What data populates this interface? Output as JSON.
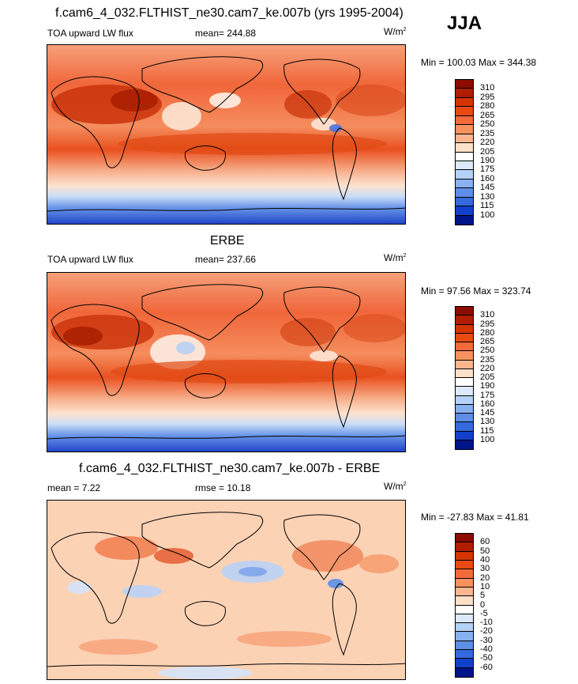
{
  "season": "JJA",
  "panels": [
    {
      "title": "f.cam6_4_032.FLTHIST_ne30.cam7_ke.007b (yrs 1995-2004)",
      "left_label": "TOA upward LW flux",
      "mid_label": "mean= 244.88",
      "units": "W/m",
      "units_sup": "2",
      "minmax": "Min = 100.03 Max = 344.38",
      "levels": [
        "310",
        "295",
        "280",
        "265",
        "250",
        "235",
        "220",
        "205",
        "190",
        "175",
        "160",
        "145",
        "130",
        "115",
        "100"
      ],
      "colors": [
        "#8c0c00",
        "#b01d00",
        "#d43500",
        "#e84a12",
        "#f26a3a",
        "#f7925f",
        "#fbb690",
        "#fde0c8",
        "#ffffff",
        "#dbe9fb",
        "#b4d1f7",
        "#88b1f0",
        "#5e8ee6",
        "#3569dd",
        "#1240cc",
        "#00148a"
      ]
    },
    {
      "title": "ERBE",
      "left_label": "TOA upward LW flux",
      "mid_label": "mean= 237.66",
      "units": "W/m",
      "units_sup": "2",
      "minmax": "Min =  97.56 Max = 323.74",
      "levels": [
        "310",
        "295",
        "280",
        "265",
        "250",
        "235",
        "220",
        "205",
        "190",
        "175",
        "160",
        "145",
        "130",
        "115",
        "100"
      ],
      "colors": [
        "#8c0c00",
        "#b01d00",
        "#d43500",
        "#e84a12",
        "#f26a3a",
        "#f7925f",
        "#fbb690",
        "#fde0c8",
        "#ffffff",
        "#dbe9fb",
        "#b4d1f7",
        "#88b1f0",
        "#5e8ee6",
        "#3569dd",
        "#1240cc",
        "#00148a"
      ]
    },
    {
      "title": "f.cam6_4_032.FLTHIST_ne30.cam7_ke.007b - ERBE",
      "left_label": "mean =   7.22",
      "mid_label": "rmse =  10.18",
      "units": "W/m",
      "units_sup": "2",
      "minmax": "Min = -27.83 Max =  41.81",
      "levels": [
        "60",
        "50",
        "40",
        "30",
        "20",
        "10",
        "5",
        "0",
        "-5",
        "-10",
        "-20",
        "-30",
        "-40",
        "-50",
        "-60"
      ],
      "colors": [
        "#8c0c00",
        "#b01d00",
        "#d43500",
        "#e84a12",
        "#f26a3a",
        "#f7925f",
        "#fbb690",
        "#fde0c8",
        "#ffffff",
        "#dbe9fb",
        "#b4d1f7",
        "#88b1f0",
        "#5e8ee6",
        "#3569dd",
        "#1240cc",
        "#00148a"
      ]
    }
  ]
}
